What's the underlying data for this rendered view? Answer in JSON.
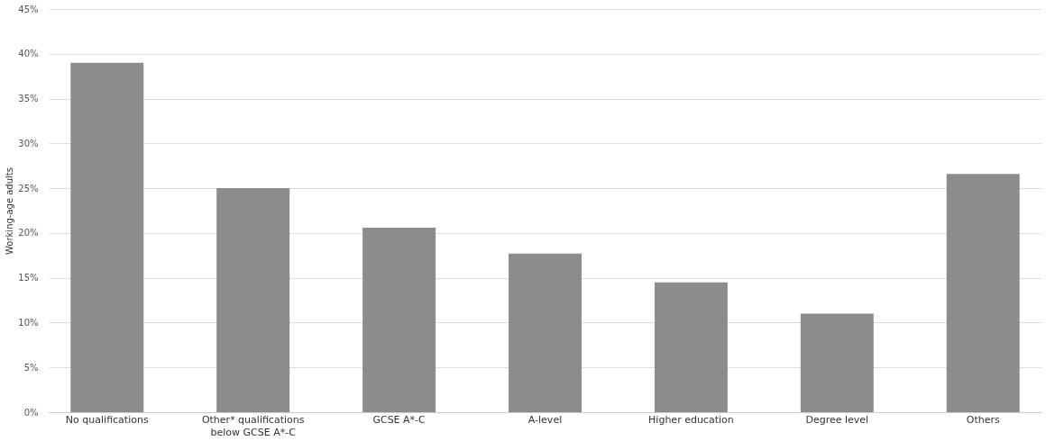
{
  "chart_data": {
    "type": "bar",
    "ylabel": "Working-age adults",
    "categories": [
      "No qualifications",
      "Other* qualifications\nbelow GCSE A*-C",
      "GCSE A*-C",
      "A-level",
      "Higher education",
      "Degree level",
      "Others"
    ],
    "values": [
      39,
      25,
      20.6,
      17.7,
      14.5,
      11.0,
      26.6
    ],
    "color": "#8c8c8c",
    "ylim": [
      0,
      45
    ],
    "yticks": [
      {
        "value": 0,
        "label": "0%"
      },
      {
        "value": 5,
        "label": "5%"
      },
      {
        "value": 10,
        "label": "10%"
      },
      {
        "value": 15,
        "label": "15%"
      },
      {
        "value": 20,
        "label": "20%"
      },
      {
        "value": 25,
        "label": "25%"
      },
      {
        "value": 30,
        "label": "30%"
      },
      {
        "value": 35,
        "label": "35%"
      },
      {
        "value": 40,
        "label": "40%"
      },
      {
        "value": 45,
        "label": "45%"
      }
    ],
    "grid": "y"
  }
}
